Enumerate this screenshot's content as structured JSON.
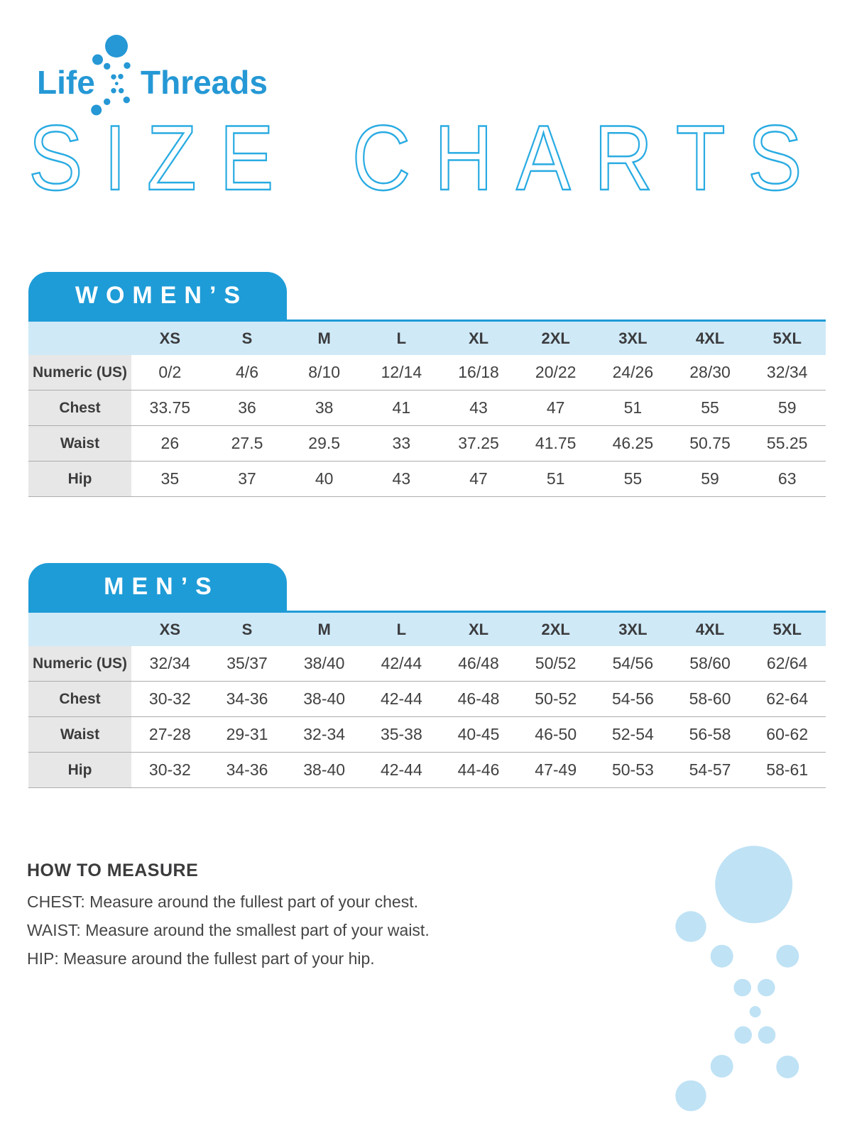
{
  "brand": {
    "name_left": "Life",
    "name_right": "Threads"
  },
  "page_title": "SIZE CHARTS",
  "tables": {
    "womens": {
      "tab_label": "WOMEN’S",
      "sizes": [
        "XS",
        "S",
        "M",
        "L",
        "XL",
        "2XL",
        "3XL",
        "4XL",
        "5XL"
      ],
      "rows": [
        {
          "label": "Numeric (US)",
          "values": [
            "0/2",
            "4/6",
            "8/10",
            "12/14",
            "16/18",
            "20/22",
            "24/26",
            "28/30",
            "32/34"
          ]
        },
        {
          "label": "Chest",
          "values": [
            "33.75",
            "36",
            "38",
            "41",
            "43",
            "47",
            "51",
            "55",
            "59"
          ]
        },
        {
          "label": "Waist",
          "values": [
            "26",
            "27.5",
            "29.5",
            "33",
            "37.25",
            "41.75",
            "46.25",
            "50.75",
            "55.25"
          ]
        },
        {
          "label": "Hip",
          "values": [
            "35",
            "37",
            "40",
            "43",
            "47",
            "51",
            "55",
            "59",
            "63"
          ]
        }
      ]
    },
    "mens": {
      "tab_label": "MEN’S",
      "sizes": [
        "XS",
        "S",
        "M",
        "L",
        "XL",
        "2XL",
        "3XL",
        "4XL",
        "5XL"
      ],
      "rows": [
        {
          "label": "Numeric (US)",
          "values": [
            "32/34",
            "35/37",
            "38/40",
            "42/44",
            "46/48",
            "50/52",
            "54/56",
            "58/60",
            "62/64"
          ]
        },
        {
          "label": "Chest",
          "values": [
            "30-32",
            "34-36",
            "38-40",
            "42-44",
            "46-48",
            "50-52",
            "54-56",
            "58-60",
            "62-64"
          ]
        },
        {
          "label": "Waist",
          "values": [
            "27-28",
            "29-31",
            "32-34",
            "35-38",
            "40-45",
            "46-50",
            "52-54",
            "56-58",
            "60-62"
          ]
        },
        {
          "label": "Hip",
          "values": [
            "30-32",
            "34-36",
            "38-40",
            "42-44",
            "44-46",
            "47-49",
            "50-53",
            "54-57",
            "58-61"
          ]
        }
      ]
    }
  },
  "how_to_measure": {
    "heading": "HOW TO MEASURE",
    "lines": [
      "CHEST: Measure around the fullest part of your chest.",
      "WAIST: Measure around the smallest part of your waist.",
      "HIP: Measure around the fullest part of your hip."
    ]
  },
  "icons": {
    "logo_dots": "life-threads-dots-icon",
    "decoration": "dots-decoration"
  },
  "colors": {
    "brand_blue": "#1e9cd7",
    "outline_blue": "#29abe2",
    "header_light_blue": "#cfe9f7",
    "label_gray": "#e7e7e7",
    "pale_dot_blue": "#bfe2f5",
    "text_dark": "#3b3b3d"
  }
}
